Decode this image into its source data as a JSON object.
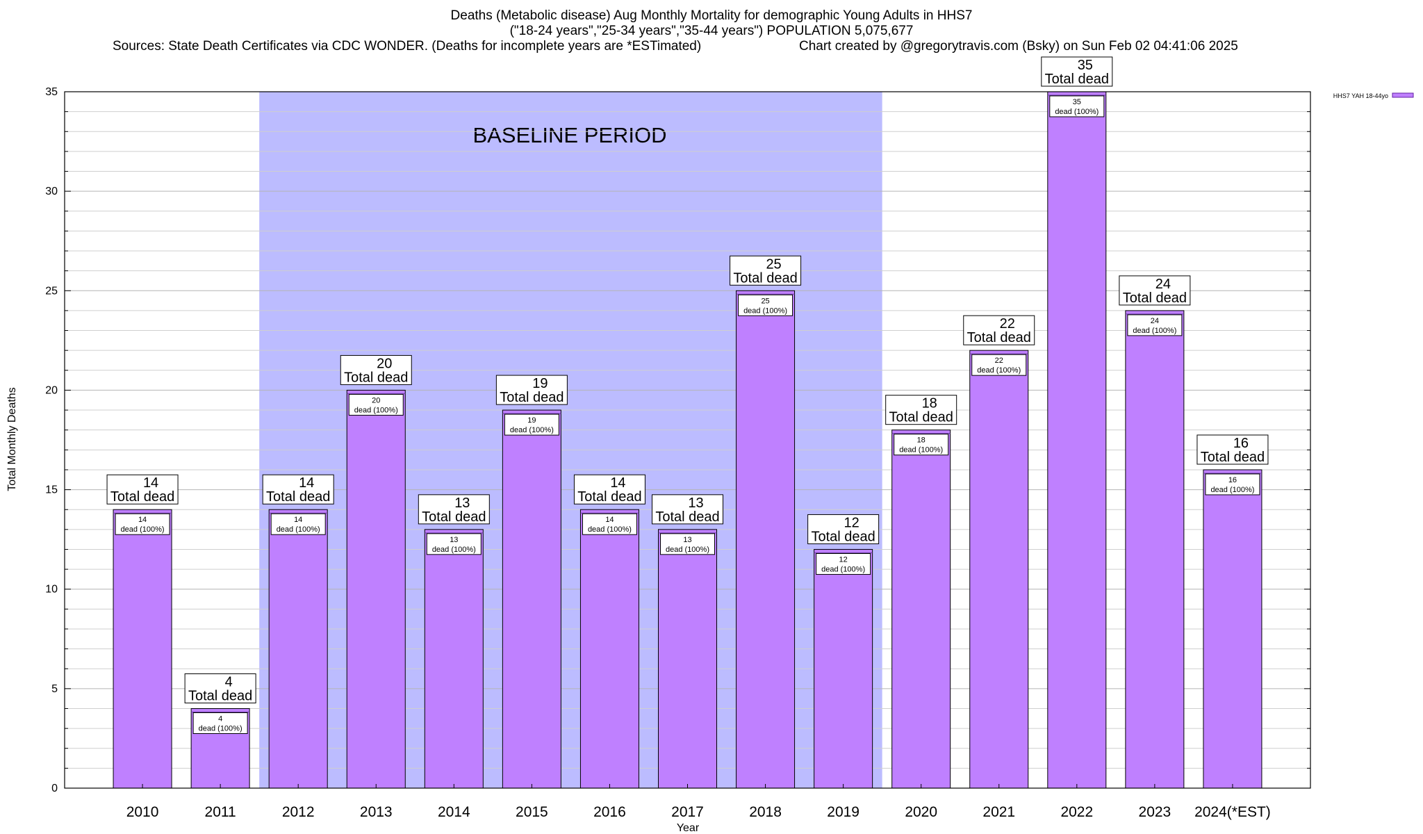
{
  "chart_data": {
    "type": "bar",
    "title_lines": [
      "Deaths (Metabolic disease) Aug Monthly Mortality for demographic Young Adults in HHS7",
      "(\"18-24 years\",\"25-34 years\",\"35-44 years\") POPULATION 5,075,677",
      "Sources: State Death Certificates via CDC WONDER. (Deaths for incomplete years are *ESTimated)",
      "Chart created by @gregorytravis.com (Bsky) on Sun Feb 02 04:41:06 2025"
    ],
    "xlabel": "Year",
    "ylabel": "Total Monthly Deaths",
    "ylim": [
      0,
      35
    ],
    "yticks": [
      0,
      5,
      10,
      15,
      20,
      25,
      30,
      35
    ],
    "minor_tick_step": 1,
    "grid": true,
    "legend_position": "top-right",
    "categories": [
      "2010",
      "2011",
      "2012",
      "2013",
      "2014",
      "2015",
      "2016",
      "2017",
      "2018",
      "2019",
      "2020",
      "2021",
      "2022",
      "2023",
      "2024(*EST)"
    ],
    "series": [
      {
        "name": "HHS7 YAH 18-44yo",
        "color": "#bf80ff",
        "values": [
          14,
          4,
          14,
          20,
          13,
          19,
          14,
          13,
          25,
          12,
          18,
          22,
          35,
          24,
          16
        ]
      }
    ],
    "total_label_suffix": "Total dead",
    "inner_label_suffix": "dead (100%)",
    "baseline": {
      "label": "BASELINE PERIOD",
      "from_category": "2012",
      "to_category": "2019",
      "color": "#bcbcff"
    }
  }
}
